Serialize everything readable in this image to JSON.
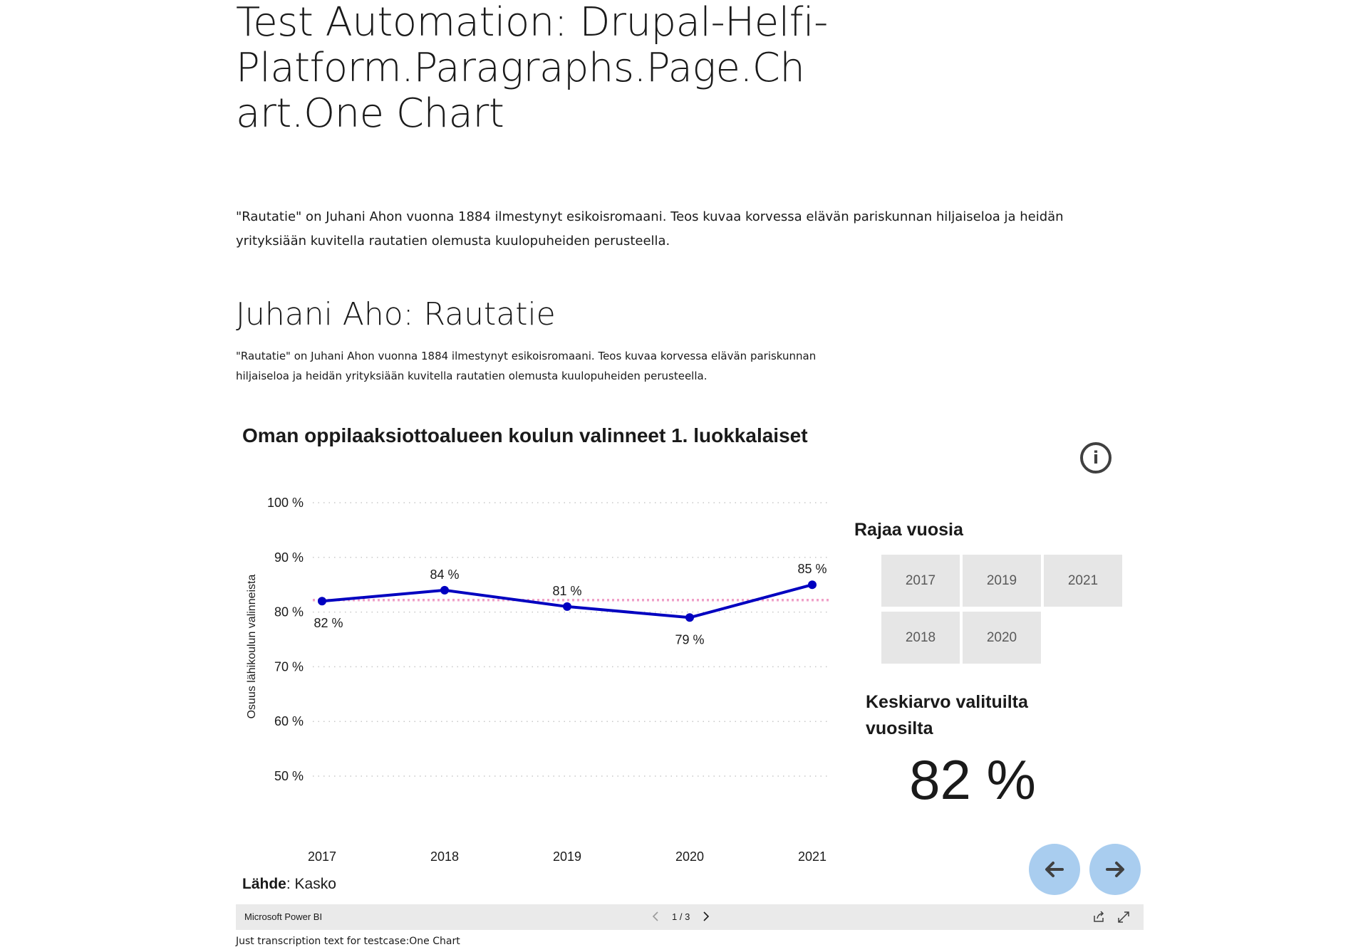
{
  "page": {
    "title": "Test Automation: Drupal-Helfi-Platform.Paragraphs.Page.Chart.One Chart",
    "title_lines": [
      "Test Automation: Drupal-Helfi-",
      "Platform.Paragraphs.Page.Ch",
      "art.One Chart"
    ],
    "intro": "\"Rautatie\" on Juhani Ahon vuonna 1884 ilmestynyt esikoisromaani. Teos kuvaa korvessa elävän pariskunnan hiljaiseloa ja heidän yrityksiään kuvitella rautatien olemusta kuulopuheiden perusteella.",
    "section_heading": "Juhani Aho: Rautatie",
    "section_description": "\"Rautatie\" on Juhani Ahon vuonna 1884 ilmestynyt esikoisromaani. Teos kuvaa korvessa elävän pariskunnan hiljaiseloa ja heidän yrityksiään kuvitella rautatien olemusta kuulopuheiden perusteella.",
    "transcription": "Just transcription text for testcase:One Chart"
  },
  "report": {
    "info_icon": "info-icon",
    "slicer_title": "Rajaa vuosia",
    "slicer_years": [
      "2017",
      "2019",
      "2021",
      "2018",
      "2020"
    ],
    "kpi_title": "Keskiarvo valituilta vuosilta",
    "kpi_value": "82 %",
    "source_label": "Lähde",
    "source_value": ": Kasko",
    "nav_prev_icon": "arrow-left-icon",
    "nav_next_icon": "arrow-right-icon",
    "colors": {
      "line": "#0000c0",
      "average": "#f0a0c8",
      "grid": "#c8c8c8",
      "nav": "#a9cdef",
      "slicer": "#e6e6e6"
    }
  },
  "pbi_bar": {
    "brand": "Microsoft Power BI",
    "page_indicator": "1 / 3",
    "share_icon": "share-icon",
    "fullscreen_icon": "expand-icon"
  },
  "chart_data": {
    "type": "line",
    "title": "Oman oppilaaksiottoalueen koulun valinneet 1. luokkalaiset",
    "ylabel": "Osuus lähikoulun valinneista",
    "xlabel": "",
    "x": [
      "2017",
      "2018",
      "2019",
      "2020",
      "2021"
    ],
    "series": [
      {
        "values": [
          82,
          84,
          81,
          79,
          85
        ],
        "labels": [
          "82 %",
          "84 %",
          "81 %",
          "79 %",
          "85 %"
        ]
      }
    ],
    "average_line": 82.2,
    "ylim": [
      50,
      100
    ],
    "yticks": [
      50,
      60,
      70,
      80,
      90,
      100
    ],
    "ytick_labels": [
      "50 %",
      "60 %",
      "70 %",
      "80 %",
      "90 %",
      "100 %"
    ],
    "grid": true,
    "legend": "none"
  }
}
